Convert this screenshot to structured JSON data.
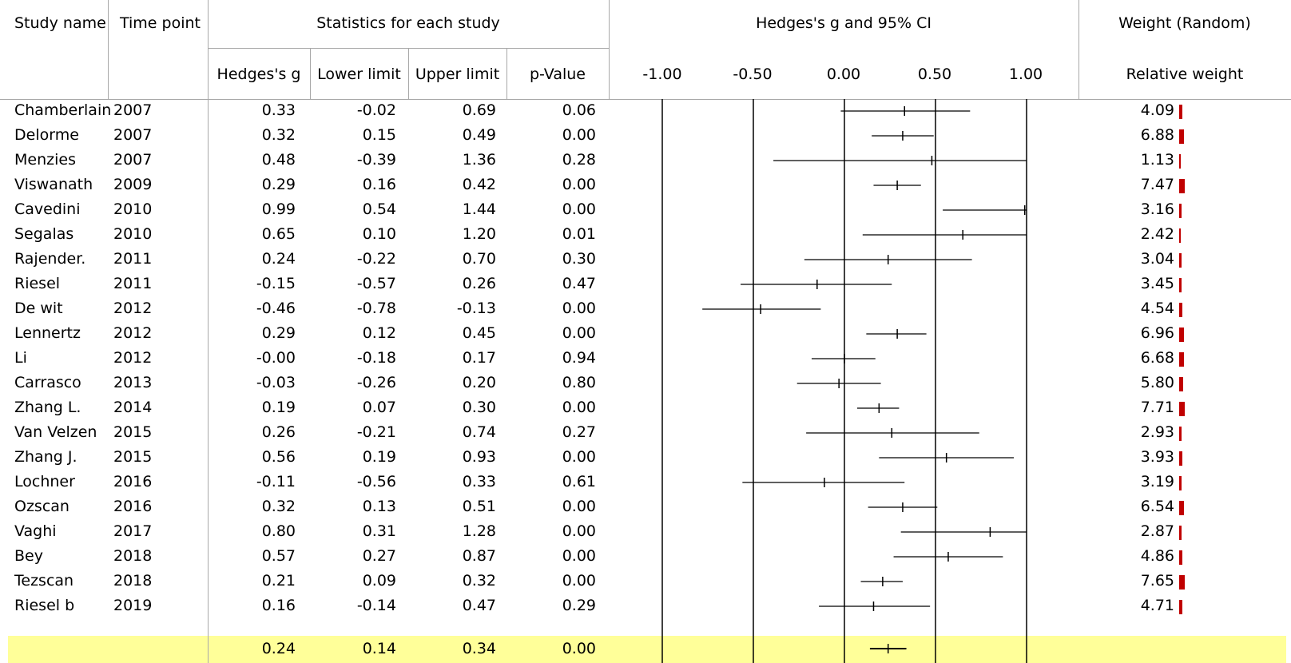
{
  "headers": {
    "study_name": "Study name",
    "time_point": "Time point",
    "stats_group": "Statistics for each study",
    "hedges_g": "Hedges's g",
    "lower_limit": "Lower limit",
    "upper_limit": "Upper limit",
    "p_value": "p-Value",
    "plot_title": "Hedges's g and 95% CI",
    "weight_group": "Weight (Random)",
    "relative_weight": "Relative weight"
  },
  "colors": {
    "weight_bar": "#c00000",
    "summary_band": "#ffff99",
    "grid_line": "#a8a8a8"
  },
  "studies": [
    {
      "name": "Chamberlain",
      "year": "2007",
      "g": "0.33",
      "lower": "-0.02",
      "upper": "0.69",
      "p": "0.06",
      "weight": "4.09"
    },
    {
      "name": "Delorme",
      "year": "2007",
      "g": "0.32",
      "lower": "0.15",
      "upper": "0.49",
      "p": "0.00",
      "weight": "6.88"
    },
    {
      "name": "Menzies",
      "year": "2007",
      "g": "0.48",
      "lower": "-0.39",
      "upper": "1.36",
      "p": "0.28",
      "weight": "1.13"
    },
    {
      "name": "Viswanath",
      "year": "2009",
      "g": "0.29",
      "lower": "0.16",
      "upper": "0.42",
      "p": "0.00",
      "weight": "7.47"
    },
    {
      "name": "Cavedini",
      "year": "2010",
      "g": "0.99",
      "lower": "0.54",
      "upper": "1.44",
      "p": "0.00",
      "weight": "3.16"
    },
    {
      "name": "Segalas",
      "year": "2010",
      "g": "0.65",
      "lower": "0.10",
      "upper": "1.20",
      "p": "0.01",
      "weight": "2.42"
    },
    {
      "name": "Rajender.",
      "year": "2011",
      "g": "0.24",
      "lower": "-0.22",
      "upper": "0.70",
      "p": "0.30",
      "weight": "3.04"
    },
    {
      "name": "Riesel",
      "year": "2011",
      "g": "-0.15",
      "lower": "-0.57",
      "upper": "0.26",
      "p": "0.47",
      "weight": "3.45"
    },
    {
      "name": "De wit",
      "year": "2012",
      "g": "-0.46",
      "lower": "-0.78",
      "upper": "-0.13",
      "p": "0.00",
      "weight": "4.54"
    },
    {
      "name": "Lennertz",
      "year": "2012",
      "g": "0.29",
      "lower": "0.12",
      "upper": "0.45",
      "p": "0.00",
      "weight": "6.96"
    },
    {
      "name": "Li",
      "year": "2012",
      "g": "-0.00",
      "lower": "-0.18",
      "upper": "0.17",
      "p": "0.94",
      "weight": "6.68"
    },
    {
      "name": "Carrasco",
      "year": "2013",
      "g": "-0.03",
      "lower": "-0.26",
      "upper": "0.20",
      "p": "0.80",
      "weight": "5.80"
    },
    {
      "name": "Zhang L.",
      "year": "2014",
      "g": "0.19",
      "lower": "0.07",
      "upper": "0.30",
      "p": "0.00",
      "weight": "7.71"
    },
    {
      "name": "Van Velzen",
      "year": "2015",
      "g": "0.26",
      "lower": "-0.21",
      "upper": "0.74",
      "p": "0.27",
      "weight": "2.93"
    },
    {
      "name": "Zhang J.",
      "year": "2015",
      "g": "0.56",
      "lower": "0.19",
      "upper": "0.93",
      "p": "0.00",
      "weight": "3.93"
    },
    {
      "name": "Lochner",
      "year": "2016",
      "g": "-0.11",
      "lower": "-0.56",
      "upper": "0.33",
      "p": "0.61",
      "weight": "3.19"
    },
    {
      "name": "Ozscan",
      "year": "2016",
      "g": "0.32",
      "lower": "0.13",
      "upper": "0.51",
      "p": "0.00",
      "weight": "6.54"
    },
    {
      "name": "Vaghi",
      "year": "2017",
      "g": "0.80",
      "lower": "0.31",
      "upper": "1.28",
      "p": "0.00",
      "weight": "2.87"
    },
    {
      "name": "Bey",
      "year": "2018",
      "g": "0.57",
      "lower": "0.27",
      "upper": "0.87",
      "p": "0.00",
      "weight": "4.86"
    },
    {
      "name": "Tezscan",
      "year": "2018",
      "g": "0.21",
      "lower": "0.09",
      "upper": "0.32",
      "p": "0.00",
      "weight": "7.65"
    },
    {
      "name": "Riesel b",
      "year": "2019",
      "g": "0.16",
      "lower": "-0.14",
      "upper": "0.47",
      "p": "0.29",
      "weight": "4.71"
    }
  ],
  "summary": {
    "g": "0.24",
    "lower": "0.14",
    "upper": "0.34",
    "p": "0.00"
  },
  "chart_data": {
    "type": "forest",
    "title": "Hedges's g and 95% CI",
    "x_ticks": [
      "-1.00",
      "-0.50",
      "0.00",
      "0.50",
      "1.00"
    ],
    "x_tick_values": [
      -1.0,
      -0.5,
      0.0,
      0.5,
      1.0
    ],
    "xlim": [
      -1.0,
      1.0
    ],
    "series": [
      {
        "name": "Chamberlain",
        "point": 0.33,
        "lower": -0.02,
        "upper": 0.69,
        "weight": 4.09
      },
      {
        "name": "Delorme",
        "point": 0.32,
        "lower": 0.15,
        "upper": 0.49,
        "weight": 6.88
      },
      {
        "name": "Menzies",
        "point": 0.48,
        "lower": -0.39,
        "upper": 1.36,
        "weight": 1.13
      },
      {
        "name": "Viswanath",
        "point": 0.29,
        "lower": 0.16,
        "upper": 0.42,
        "weight": 7.47
      },
      {
        "name": "Cavedini",
        "point": 0.99,
        "lower": 0.54,
        "upper": 1.44,
        "weight": 3.16
      },
      {
        "name": "Segalas",
        "point": 0.65,
        "lower": 0.1,
        "upper": 1.2,
        "weight": 2.42
      },
      {
        "name": "Rajender.",
        "point": 0.24,
        "lower": -0.22,
        "upper": 0.7,
        "weight": 3.04
      },
      {
        "name": "Riesel",
        "point": -0.15,
        "lower": -0.57,
        "upper": 0.26,
        "weight": 3.45
      },
      {
        "name": "De wit",
        "point": -0.46,
        "lower": -0.78,
        "upper": -0.13,
        "weight": 4.54
      },
      {
        "name": "Lennertz",
        "point": 0.29,
        "lower": 0.12,
        "upper": 0.45,
        "weight": 6.96
      },
      {
        "name": "Li",
        "point": 0.0,
        "lower": -0.18,
        "upper": 0.17,
        "weight": 6.68
      },
      {
        "name": "Carrasco",
        "point": -0.03,
        "lower": -0.26,
        "upper": 0.2,
        "weight": 5.8
      },
      {
        "name": "Zhang L.",
        "point": 0.19,
        "lower": 0.07,
        "upper": 0.3,
        "weight": 7.71
      },
      {
        "name": "Van Velzen",
        "point": 0.26,
        "lower": -0.21,
        "upper": 0.74,
        "weight": 2.93
      },
      {
        "name": "Zhang J.",
        "point": 0.56,
        "lower": 0.19,
        "upper": 0.93,
        "weight": 3.93
      },
      {
        "name": "Lochner",
        "point": -0.11,
        "lower": -0.56,
        "upper": 0.33,
        "weight": 3.19
      },
      {
        "name": "Ozscan",
        "point": 0.32,
        "lower": 0.13,
        "upper": 0.51,
        "weight": 6.54
      },
      {
        "name": "Vaghi",
        "point": 0.8,
        "lower": 0.31,
        "upper": 1.28,
        "weight": 2.87
      },
      {
        "name": "Bey",
        "point": 0.57,
        "lower": 0.27,
        "upper": 0.87,
        "weight": 4.86
      },
      {
        "name": "Tezscan",
        "point": 0.21,
        "lower": 0.09,
        "upper": 0.32,
        "weight": 7.65
      },
      {
        "name": "Riesel b",
        "point": 0.16,
        "lower": -0.14,
        "upper": 0.47,
        "weight": 4.71
      }
    ],
    "summary": {
      "point": 0.24,
      "lower": 0.14,
      "upper": 0.34
    }
  }
}
